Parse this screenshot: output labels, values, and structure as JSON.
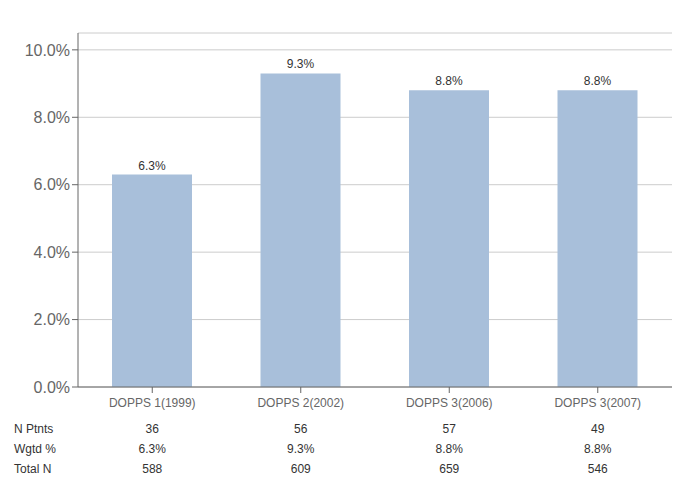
{
  "chart_data": {
    "type": "bar",
    "categories": [
      "DOPPS 1(1999)",
      "DOPPS 2(2002)",
      "DOPPS 3(2006)",
      "DOPPS 3(2007)"
    ],
    "values": [
      6.3,
      9.3,
      8.8,
      8.8
    ],
    "value_labels": [
      "6.3%",
      "9.3%",
      "8.8%",
      "8.8%"
    ],
    "data_labels": true,
    "color": "#a8bfda",
    "ylim": [
      0,
      10.5
    ],
    "yticks": [
      {
        "value": 0.0,
        "label": "0.0%"
      },
      {
        "value": 2.0,
        "label": "2.0%"
      },
      {
        "value": 4.0,
        "label": "4.0%"
      },
      {
        "value": 6.0,
        "label": "6.0%"
      },
      {
        "value": 8.0,
        "label": "8.0%"
      },
      {
        "value": 10.0,
        "label": "10.0%"
      }
    ],
    "grid": true,
    "table": [
      {
        "label": "N Ptnts",
        "cells": [
          "36",
          "56",
          "57",
          "49"
        ]
      },
      {
        "label": "Wgtd %",
        "cells": [
          "6.3%",
          "9.3%",
          "8.8%",
          "8.8%"
        ]
      },
      {
        "label": "Total N",
        "cells": [
          "588",
          "609",
          "659",
          "546"
        ]
      }
    ]
  }
}
